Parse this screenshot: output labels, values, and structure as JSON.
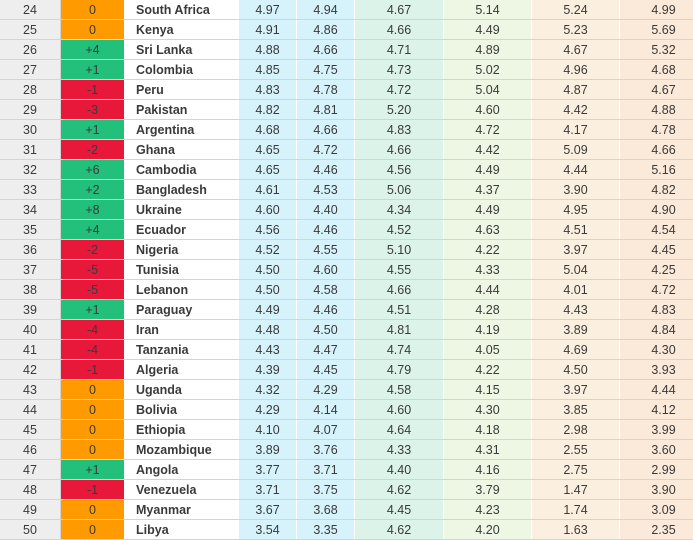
{
  "rows": [
    {
      "rank": "24",
      "change": "0",
      "dir": "same",
      "country": "South Africa",
      "s1": "4.97",
      "s2": "4.94",
      "s3": "4.67",
      "s4": "5.14",
      "s5": "5.24",
      "s6": "4.99"
    },
    {
      "rank": "25",
      "change": "0",
      "dir": "same",
      "country": "Kenya",
      "s1": "4.91",
      "s2": "4.86",
      "s3": "4.66",
      "s4": "4.49",
      "s5": "5.23",
      "s6": "5.69"
    },
    {
      "rank": "26",
      "change": "+4",
      "dir": "up",
      "country": "Sri Lanka",
      "s1": "4.88",
      "s2": "4.66",
      "s3": "4.71",
      "s4": "4.89",
      "s5": "4.67",
      "s6": "5.32"
    },
    {
      "rank": "27",
      "change": "+1",
      "dir": "up",
      "country": "Colombia",
      "s1": "4.85",
      "s2": "4.75",
      "s3": "4.73",
      "s4": "5.02",
      "s5": "4.96",
      "s6": "4.68"
    },
    {
      "rank": "28",
      "change": "-1",
      "dir": "down",
      "country": "Peru",
      "s1": "4.83",
      "s2": "4.78",
      "s3": "4.72",
      "s4": "5.04",
      "s5": "4.87",
      "s6": "4.67"
    },
    {
      "rank": "29",
      "change": "-3",
      "dir": "down",
      "country": "Pakistan",
      "s1": "4.82",
      "s2": "4.81",
      "s3": "5.20",
      "s4": "4.60",
      "s5": "4.42",
      "s6": "4.88"
    },
    {
      "rank": "30",
      "change": "+1",
      "dir": "up",
      "country": "Argentina",
      "s1": "4.68",
      "s2": "4.66",
      "s3": "4.83",
      "s4": "4.72",
      "s5": "4.17",
      "s6": "4.78"
    },
    {
      "rank": "31",
      "change": "-2",
      "dir": "down",
      "country": "Ghana",
      "s1": "4.65",
      "s2": "4.72",
      "s3": "4.66",
      "s4": "4.42",
      "s5": "5.09",
      "s6": "4.66"
    },
    {
      "rank": "32",
      "change": "+6",
      "dir": "up",
      "country": "Cambodia",
      "s1": "4.65",
      "s2": "4.46",
      "s3": "4.56",
      "s4": "4.49",
      "s5": "4.44",
      "s6": "5.16"
    },
    {
      "rank": "33",
      "change": "+2",
      "dir": "up",
      "country": "Bangladesh",
      "s1": "4.61",
      "s2": "4.53",
      "s3": "5.06",
      "s4": "4.37",
      "s5": "3.90",
      "s6": "4.82"
    },
    {
      "rank": "34",
      "change": "+8",
      "dir": "up",
      "country": "Ukraine",
      "s1": "4.60",
      "s2": "4.40",
      "s3": "4.34",
      "s4": "4.49",
      "s5": "4.95",
      "s6": "4.90"
    },
    {
      "rank": "35",
      "change": "+4",
      "dir": "up",
      "country": "Ecuador",
      "s1": "4.56",
      "s2": "4.46",
      "s3": "4.52",
      "s4": "4.63",
      "s5": "4.51",
      "s6": "4.54"
    },
    {
      "rank": "36",
      "change": "-2",
      "dir": "down",
      "country": "Nigeria",
      "s1": "4.52",
      "s2": "4.55",
      "s3": "5.10",
      "s4": "4.22",
      "s5": "3.97",
      "s6": "4.45"
    },
    {
      "rank": "37",
      "change": "-5",
      "dir": "down",
      "country": "Tunisia",
      "s1": "4.50",
      "s2": "4.60",
      "s3": "4.55",
      "s4": "4.33",
      "s5": "5.04",
      "s6": "4.25"
    },
    {
      "rank": "38",
      "change": "-5",
      "dir": "down",
      "country": "Lebanon",
      "s1": "4.50",
      "s2": "4.58",
      "s3": "4.66",
      "s4": "4.44",
      "s5": "4.01",
      "s6": "4.72"
    },
    {
      "rank": "39",
      "change": "+1",
      "dir": "up",
      "country": "Paraguay",
      "s1": "4.49",
      "s2": "4.46",
      "s3": "4.51",
      "s4": "4.28",
      "s5": "4.43",
      "s6": "4.83"
    },
    {
      "rank": "40",
      "change": "-4",
      "dir": "down",
      "country": "Iran",
      "s1": "4.48",
      "s2": "4.50",
      "s3": "4.81",
      "s4": "4.19",
      "s5": "3.89",
      "s6": "4.84"
    },
    {
      "rank": "41",
      "change": "-4",
      "dir": "down",
      "country": "Tanzania",
      "s1": "4.43",
      "s2": "4.47",
      "s3": "4.74",
      "s4": "4.05",
      "s5": "4.69",
      "s6": "4.30"
    },
    {
      "rank": "42",
      "change": "-1",
      "dir": "down",
      "country": "Algeria",
      "s1": "4.39",
      "s2": "4.45",
      "s3": "4.79",
      "s4": "4.22",
      "s5": "4.50",
      "s6": "3.93"
    },
    {
      "rank": "43",
      "change": "0",
      "dir": "same",
      "country": "Uganda",
      "s1": "4.32",
      "s2": "4.29",
      "s3": "4.58",
      "s4": "4.15",
      "s5": "3.97",
      "s6": "4.44"
    },
    {
      "rank": "44",
      "change": "0",
      "dir": "same",
      "country": "Bolivia",
      "s1": "4.29",
      "s2": "4.14",
      "s3": "4.60",
      "s4": "4.30",
      "s5": "3.85",
      "s6": "4.12"
    },
    {
      "rank": "45",
      "change": "0",
      "dir": "same",
      "country": "Ethiopia",
      "s1": "4.10",
      "s2": "4.07",
      "s3": "4.64",
      "s4": "4.18",
      "s5": "2.98",
      "s6": "3.99"
    },
    {
      "rank": "46",
      "change": "0",
      "dir": "same",
      "country": "Mozambique",
      "s1": "3.89",
      "s2": "3.76",
      "s3": "4.33",
      "s4": "4.31",
      "s5": "2.55",
      "s6": "3.60"
    },
    {
      "rank": "47",
      "change": "+1",
      "dir": "up",
      "country": "Angola",
      "s1": "3.77",
      "s2": "3.71",
      "s3": "4.40",
      "s4": "4.16",
      "s5": "2.75",
      "s6": "2.99"
    },
    {
      "rank": "48",
      "change": "-1",
      "dir": "down",
      "country": "Venezuela",
      "s1": "3.71",
      "s2": "3.75",
      "s3": "4.62",
      "s4": "3.79",
      "s5": "1.47",
      "s6": "3.90"
    },
    {
      "rank": "49",
      "change": "0",
      "dir": "same",
      "country": "Myanmar",
      "s1": "3.67",
      "s2": "3.68",
      "s3": "4.45",
      "s4": "4.23",
      "s5": "1.74",
      "s6": "3.09"
    },
    {
      "rank": "50",
      "change": "0",
      "dir": "same",
      "country": "Libya",
      "s1": "3.54",
      "s2": "3.35",
      "s3": "4.62",
      "s4": "4.20",
      "s5": "1.63",
      "s6": "2.35"
    }
  ]
}
